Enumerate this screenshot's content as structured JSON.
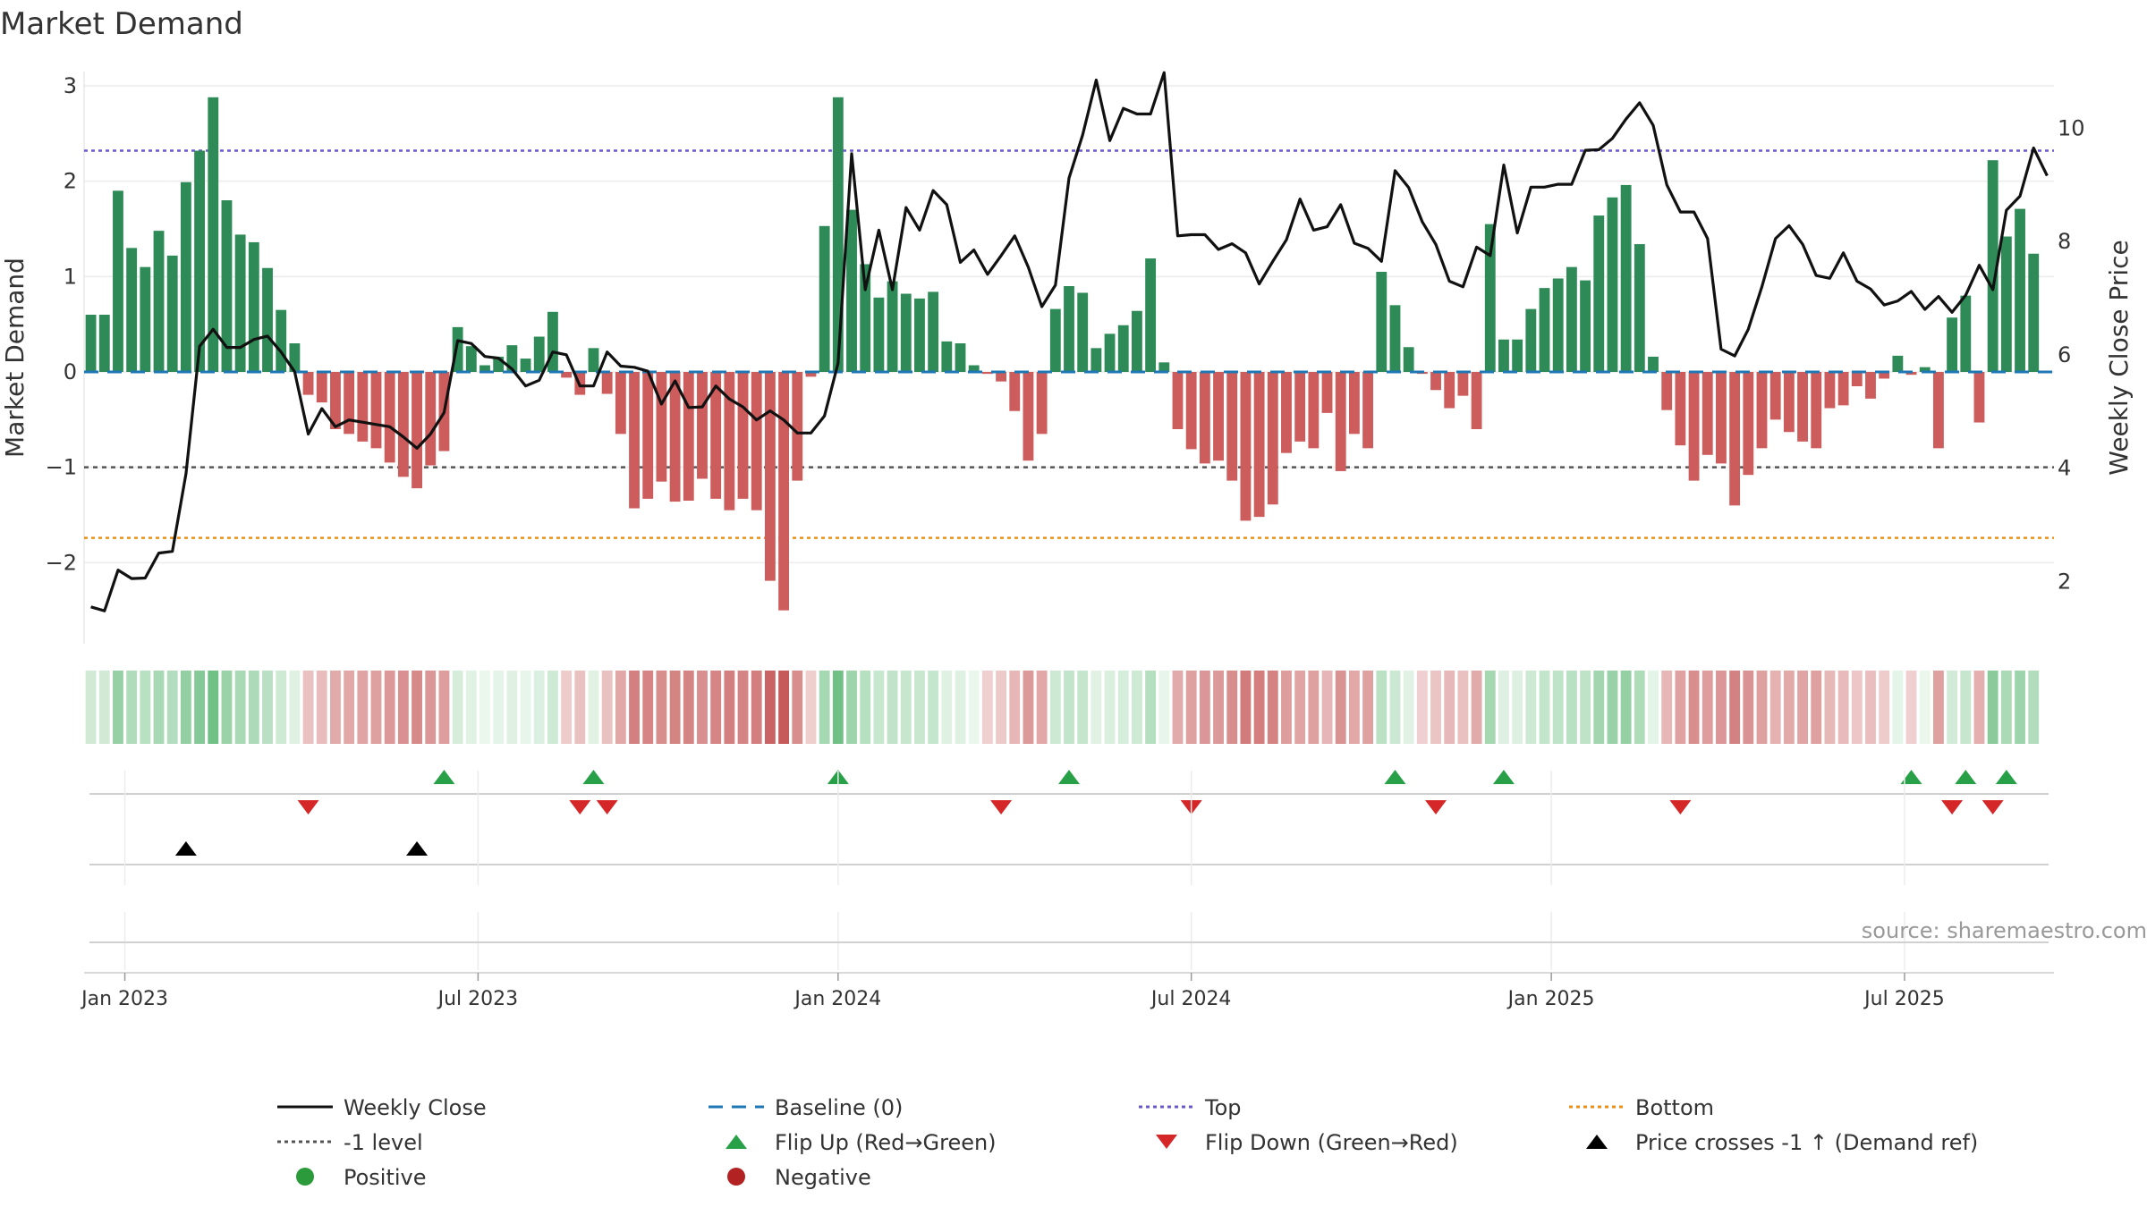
{
  "chart_data": {
    "type": "bar",
    "title": "Market Demand",
    "ylabel": "Market Demand",
    "y2label": "Weekly Close Price",
    "ylim": [
      -2.85,
      3.15
    ],
    "y2lim": [
      0.9,
      11.0
    ],
    "yticks": [
      {
        "v": -2,
        "label": "−2"
      },
      {
        "v": -1,
        "label": "−1"
      },
      {
        "v": 0,
        "label": "0"
      },
      {
        "v": 1,
        "label": "1"
      },
      {
        "v": 2,
        "label": "2"
      },
      {
        "v": 3,
        "label": "3"
      }
    ],
    "y2ticks": [
      {
        "v": 2,
        "label": "2"
      },
      {
        "v": 4,
        "label": "4"
      },
      {
        "v": 6,
        "label": "6"
      },
      {
        "v": 8,
        "label": "8"
      },
      {
        "v": 10,
        "label": "10"
      }
    ],
    "x_start": "2022-12-19",
    "x_weeks": 145,
    "xticks": [
      {
        "week": 3,
        "label": "Jan 2023"
      },
      {
        "week": 29,
        "label": "Jul 2023"
      },
      {
        "week": 55.5,
        "label": "Jan 2024"
      },
      {
        "week": 81.5,
        "label": "Jul 2024"
      },
      {
        "week": 108,
        "label": "Jan 2025"
      },
      {
        "week": 134,
        "label": "Jul 2025"
      }
    ],
    "top_level": 2.32,
    "bottom_level": -1.74,
    "ref_level": -1,
    "baseline": 0,
    "demand": [
      0.6,
      0.6,
      1.9,
      1.3,
      1.1,
      1.48,
      1.22,
      1.99,
      2.32,
      2.88,
      1.8,
      1.44,
      1.36,
      1.09,
      0.65,
      0.3,
      -0.24,
      -0.32,
      -0.6,
      -0.65,
      -0.73,
      -0.8,
      -0.95,
      -1.1,
      -1.22,
      -0.98,
      -0.83,
      0.47,
      0.27,
      0.07,
      0.16,
      0.28,
      0.14,
      0.37,
      0.63,
      -0.06,
      -0.24,
      0.25,
      -0.23,
      -0.65,
      -1.43,
      -1.33,
      -1.15,
      -1.36,
      -1.35,
      -1.12,
      -1.33,
      -1.45,
      -1.33,
      -1.45,
      -2.19,
      -2.5,
      -1.14,
      -0.05,
      1.53,
      2.88,
      1.7,
      1.13,
      0.78,
      0.95,
      0.82,
      0.77,
      0.84,
      0.32,
      0.3,
      0.07,
      -0.02,
      -0.1,
      -0.41,
      -0.93,
      -0.65,
      0.66,
      0.9,
      0.83,
      0.25,
      0.4,
      0.49,
      0.64,
      1.19,
      0.1,
      -0.6,
      -0.81,
      -0.96,
      -0.93,
      -1.14,
      -1.56,
      -1.52,
      -1.39,
      -0.85,
      -0.73,
      -0.8,
      -0.43,
      -1.04,
      -0.65,
      -0.8,
      1.05,
      0.7,
      0.26,
      -0.02,
      -0.19,
      -0.38,
      -0.25,
      -0.6,
      1.55,
      0.34,
      0.34,
      0.66,
      0.88,
      0.98,
      1.1,
      0.96,
      1.64,
      1.83,
      1.96,
      1.34,
      0.16,
      -0.4,
      -0.77,
      -1.14,
      -0.87,
      -0.96,
      -1.4,
      -1.08,
      -0.8,
      -0.5,
      -0.63,
      -0.73,
      -0.8,
      -0.38,
      -0.35,
      -0.15,
      -0.28,
      -0.07,
      0.17,
      -0.03,
      0.05,
      -0.8,
      0.57,
      0.8,
      -0.53,
      2.22,
      1.42,
      1.71,
      1.24
    ],
    "close": [
      1.55,
      1.48,
      2.2,
      2.05,
      2.06,
      2.5,
      2.53,
      3.9,
      6.15,
      6.45,
      6.13,
      6.13,
      6.27,
      6.33,
      6.05,
      5.7,
      4.6,
      5.05,
      4.73,
      4.85,
      4.81,
      4.77,
      4.73,
      4.55,
      4.35,
      4.6,
      4.98,
      6.25,
      6.2,
      5.97,
      5.94,
      5.75,
      5.45,
      5.55,
      6.05,
      6.0,
      5.45,
      5.45,
      6.05,
      5.8,
      5.78,
      5.71,
      5.13,
      5.54,
      5.07,
      5.08,
      5.45,
      5.22,
      5.08,
      4.85,
      5.01,
      4.85,
      4.62,
      4.62,
      4.92,
      5.85,
      9.55,
      7.15,
      8.2,
      7.15,
      8.6,
      8.2,
      8.9,
      8.65,
      7.63,
      7.85,
      7.42,
      7.75,
      8.1,
      7.55,
      6.85,
      7.23,
      9.12,
      9.88,
      10.85,
      9.78,
      10.35,
      10.25,
      10.25,
      10.98,
      8.1,
      8.12,
      8.12,
      7.86,
      7.96,
      7.8,
      7.25,
      7.65,
      8.03,
      8.75,
      8.2,
      8.26,
      8.65,
      7.97,
      7.88,
      7.65,
      9.25,
      8.95,
      8.35,
      7.95,
      7.3,
      7.2,
      7.9,
      7.75,
      9.35,
      8.15,
      8.96,
      8.96,
      9.01,
      9.01,
      9.61,
      9.62,
      9.82,
      10.16,
      10.45,
      10.05,
      9.0,
      8.52,
      8.52,
      8.05,
      6.1,
      5.98,
      6.45,
      7.2,
      8.05,
      8.28,
      7.95,
      7.4,
      7.35,
      7.8,
      7.3,
      7.16,
      6.88,
      6.95,
      7.12,
      6.8,
      7.03,
      6.75,
      7.05,
      7.58,
      7.15,
      8.55,
      8.8,
      9.65,
      9.16
    ],
    "flip_up_weeks": [
      26,
      37,
      55,
      72,
      96,
      104,
      134,
      138,
      141
    ],
    "flip_down_weeks": [
      16,
      36,
      38,
      67,
      81,
      99,
      117,
      137,
      140
    ],
    "price_cross_weeks": [
      7,
      24
    ],
    "legend": [
      {
        "label": "Weekly Close",
        "symbol": "line-solid",
        "color": "#111111"
      },
      {
        "label": "Baseline (0)",
        "symbol": "line-dash",
        "color": "#1f77b4"
      },
      {
        "label": "Top",
        "symbol": "line-dot",
        "color": "#6a5acd"
      },
      {
        "label": "Bottom",
        "symbol": "line-dot",
        "color": "#e8901f"
      },
      {
        "label": "-1 level",
        "symbol": "line-dot",
        "color": "#555555"
      },
      {
        "label": "Flip Up (Red→Green)",
        "symbol": "triangle-up",
        "color": "#27a047"
      },
      {
        "label": "Flip Down (Green→Red)",
        "symbol": "triangle-down",
        "color": "#d62728"
      },
      {
        "label": "Price crosses -1 ↑ (Demand ref)",
        "symbol": "triangle-up",
        "color": "#000000"
      },
      {
        "label": "Positive",
        "symbol": "circle",
        "color": "#2a9a3a"
      },
      {
        "label": "Negative",
        "symbol": "circle",
        "color": "#b22222"
      }
    ],
    "annotation": "source: sharemaestro.com"
  },
  "colors": {
    "positive": "#2e8b57",
    "negative": "#cd5c5c",
    "close": "#111111",
    "baseline": "#1f77b4",
    "top": "#6a5acd",
    "bottom": "#e8901f",
    "ref": "#555555",
    "flip_up": "#27a047",
    "flip_down": "#d62728",
    "price_cross": "#000000"
  }
}
